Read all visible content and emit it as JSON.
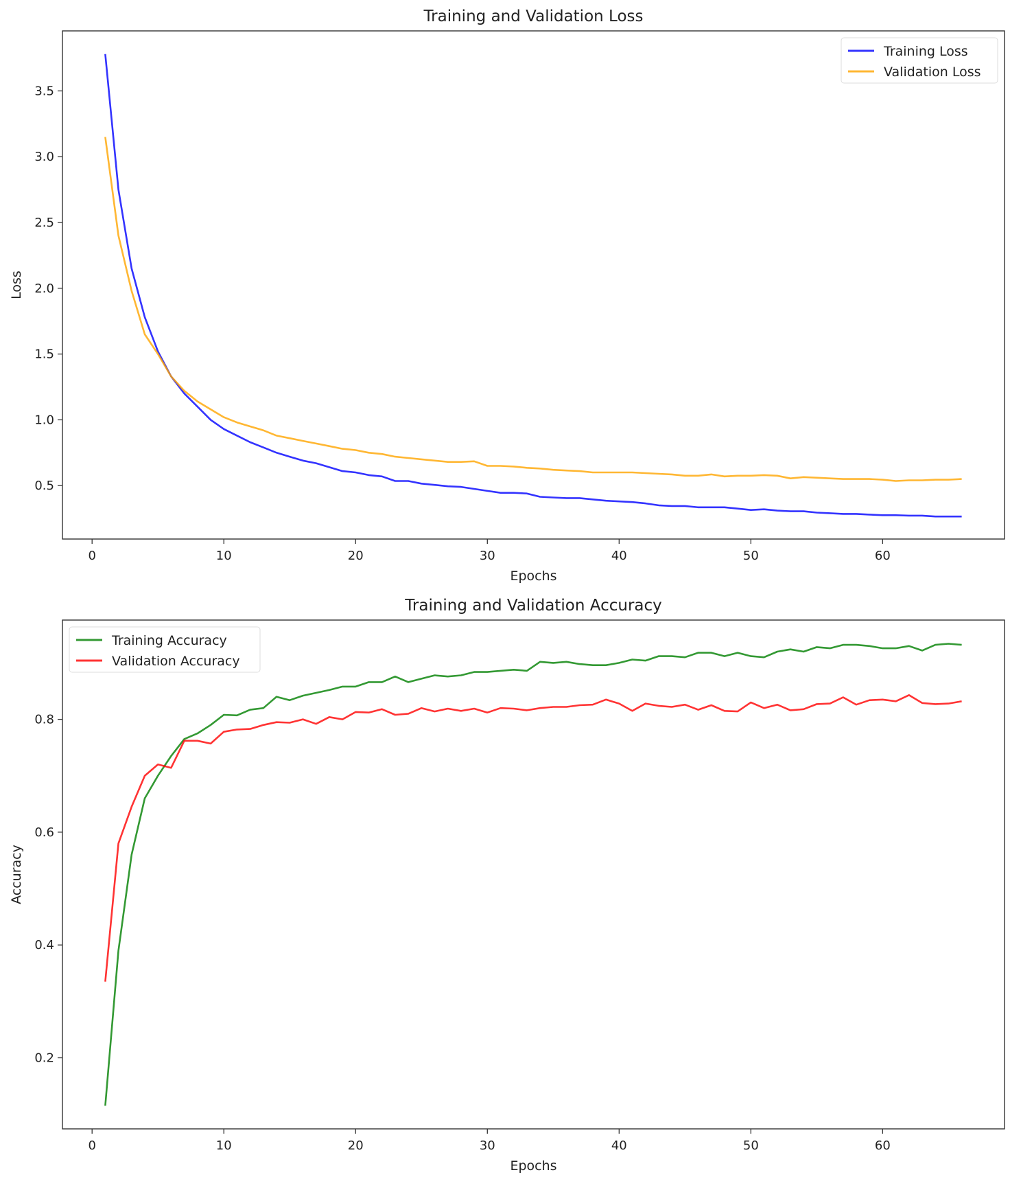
{
  "chart_data": [
    {
      "type": "line",
      "title": "Training and Validation Loss",
      "xlabel": "Epochs",
      "ylabel": "Loss",
      "xlim": [
        -2.25,
        69.25
      ],
      "ylim": [
        0.094,
        3.956
      ],
      "xticks": [
        0,
        10,
        20,
        30,
        40,
        50,
        60
      ],
      "yticks": [
        0.5,
        1.0,
        1.5,
        2.0,
        2.5,
        3.0,
        3.5
      ],
      "ytick_labels": [
        "0.5",
        "1.0",
        "1.5",
        "2.0",
        "2.5",
        "3.0",
        "3.5"
      ],
      "grid": false,
      "legend": "top-right",
      "x_start": 1,
      "series": [
        {
          "name": "Training Loss",
          "color": "#0000ff",
          "values": [
            3.78,
            2.75,
            2.15,
            1.78,
            1.52,
            1.33,
            1.2,
            1.1,
            1.0,
            0.93,
            0.88,
            0.83,
            0.79,
            0.75,
            0.72,
            0.69,
            0.67,
            0.64,
            0.61,
            0.6,
            0.58,
            0.57,
            0.535,
            0.535,
            0.515,
            0.505,
            0.495,
            0.49,
            0.475,
            0.46,
            0.445,
            0.445,
            0.44,
            0.415,
            0.41,
            0.405,
            0.405,
            0.395,
            0.385,
            0.38,
            0.375,
            0.365,
            0.35,
            0.345,
            0.345,
            0.335,
            0.335,
            0.335,
            0.325,
            0.315,
            0.32,
            0.31,
            0.305,
            0.305,
            0.295,
            0.29,
            0.285,
            0.285,
            0.28,
            0.275,
            0.275,
            0.272,
            0.272,
            0.265,
            0.265,
            0.265
          ]
        },
        {
          "name": "Validation Loss",
          "color": "#ffa500",
          "values": [
            3.15,
            2.4,
            1.98,
            1.65,
            1.5,
            1.33,
            1.22,
            1.14,
            1.08,
            1.02,
            0.98,
            0.95,
            0.92,
            0.88,
            0.86,
            0.84,
            0.82,
            0.8,
            0.78,
            0.77,
            0.75,
            0.74,
            0.72,
            0.71,
            0.7,
            0.69,
            0.68,
            0.68,
            0.685,
            0.65,
            0.65,
            0.645,
            0.635,
            0.63,
            0.62,
            0.615,
            0.61,
            0.6,
            0.6,
            0.6,
            0.6,
            0.595,
            0.59,
            0.585,
            0.575,
            0.575,
            0.585,
            0.57,
            0.575,
            0.575,
            0.58,
            0.575,
            0.555,
            0.565,
            0.56,
            0.555,
            0.55,
            0.55,
            0.55,
            0.545,
            0.535,
            0.54,
            0.54,
            0.545,
            0.545,
            0.55
          ]
        }
      ]
    },
    {
      "type": "line",
      "title": "Training and Validation Accuracy",
      "xlabel": "Epochs",
      "ylabel": "Accuracy",
      "xlim": [
        -2.25,
        69.25
      ],
      "ylim": [
        0.074,
        0.976
      ],
      "xticks": [
        0,
        10,
        20,
        30,
        40,
        50,
        60
      ],
      "yticks": [
        0.2,
        0.4,
        0.6,
        0.8
      ],
      "ytick_labels": [
        "0.2",
        "0.4",
        "0.6",
        "0.8"
      ],
      "grid": false,
      "legend": "top-left",
      "x_start": 1,
      "series": [
        {
          "name": "Training Accuracy",
          "color": "#008000",
          "values": [
            0.115,
            0.39,
            0.56,
            0.66,
            0.7,
            0.735,
            0.765,
            0.775,
            0.79,
            0.808,
            0.807,
            0.817,
            0.82,
            0.84,
            0.834,
            0.842,
            0.847,
            0.852,
            0.858,
            0.858,
            0.866,
            0.866,
            0.876,
            0.866,
            0.872,
            0.878,
            0.876,
            0.878,
            0.884,
            0.884,
            0.886,
            0.888,
            0.886,
            0.902,
            0.9,
            0.902,
            0.898,
            0.896,
            0.896,
            0.9,
            0.906,
            0.904,
            0.912,
            0.912,
            0.91,
            0.918,
            0.918,
            0.912,
            0.918,
            0.912,
            0.91,
            0.92,
            0.924,
            0.92,
            0.928,
            0.926,
            0.932,
            0.932,
            0.93,
            0.926,
            0.926,
            0.93,
            0.922,
            0.932,
            0.934,
            0.932
          ]
        },
        {
          "name": "Validation Accuracy",
          "color": "#ff0000",
          "values": [
            0.335,
            0.58,
            0.645,
            0.7,
            0.72,
            0.714,
            0.762,
            0.762,
            0.757,
            0.778,
            0.782,
            0.783,
            0.79,
            0.795,
            0.794,
            0.8,
            0.792,
            0.804,
            0.8,
            0.813,
            0.812,
            0.818,
            0.808,
            0.81,
            0.82,
            0.814,
            0.819,
            0.815,
            0.819,
            0.812,
            0.82,
            0.819,
            0.816,
            0.82,
            0.822,
            0.822,
            0.825,
            0.826,
            0.835,
            0.828,
            0.815,
            0.828,
            0.824,
            0.822,
            0.826,
            0.817,
            0.825,
            0.815,
            0.814,
            0.83,
            0.82,
            0.826,
            0.816,
            0.818,
            0.827,
            0.828,
            0.839,
            0.826,
            0.834,
            0.835,
            0.832,
            0.843,
            0.829,
            0.827,
            0.828,
            0.832
          ]
        }
      ]
    }
  ]
}
